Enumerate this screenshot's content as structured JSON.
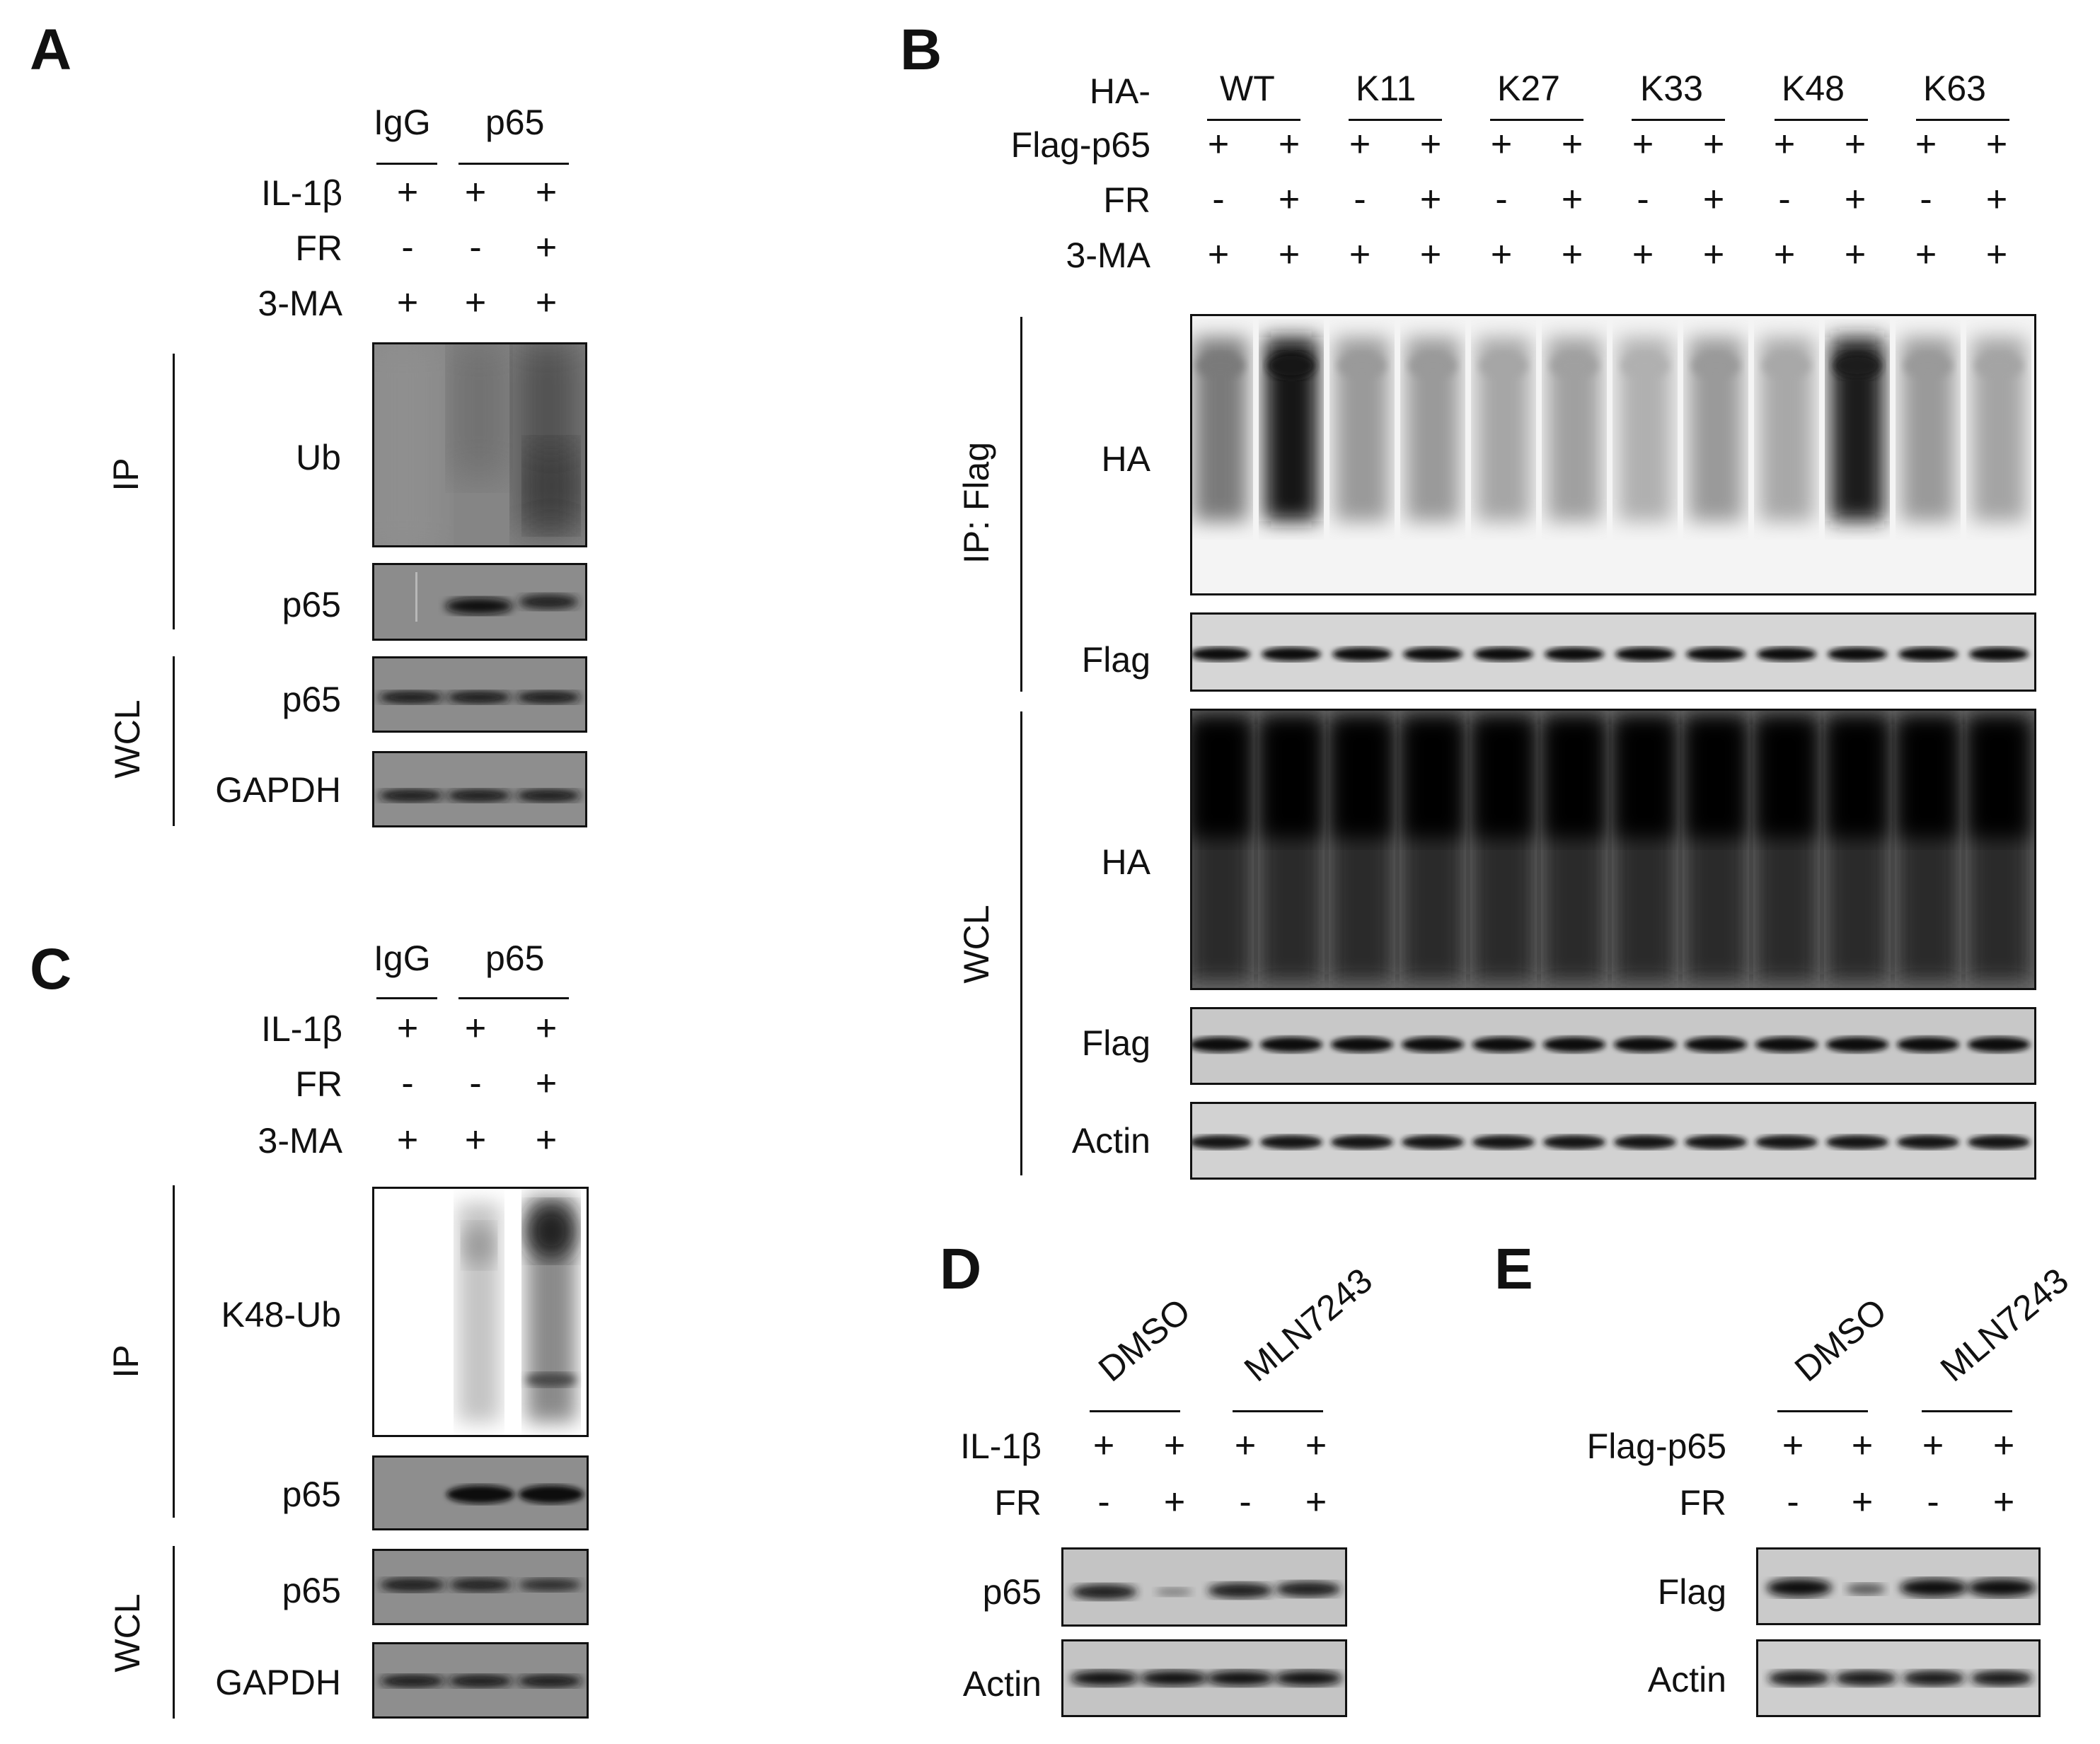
{
  "panels": {
    "A": {
      "letter": "A",
      "groups": [
        "IgG",
        "p65"
      ],
      "rows": [
        {
          "label": "IL-1β",
          "signs": [
            "+",
            "+",
            "+"
          ]
        },
        {
          "label": "FR",
          "signs": [
            "-",
            "-",
            "+"
          ]
        },
        {
          "label": "3-MA",
          "signs": [
            "+",
            "+",
            "+"
          ]
        }
      ],
      "section_ip": "IP",
      "section_wcl": "WCL",
      "blots": [
        "Ub",
        "p65",
        "p65",
        "GAPDH"
      ]
    },
    "B": {
      "letter": "B",
      "ha_prefix": "HA-",
      "groups": [
        "WT",
        "K11",
        "K27",
        "K33",
        "K48",
        "K63"
      ],
      "rows": [
        {
          "label": "Flag-p65",
          "signs": [
            "+",
            "+",
            "+",
            "+",
            "+",
            "+",
            "+",
            "+",
            "+",
            "+",
            "+",
            "+"
          ]
        },
        {
          "label": "FR",
          "signs": [
            "-",
            "+",
            "-",
            "+",
            "-",
            "+",
            "-",
            "+",
            "-",
            "+",
            "-",
            "+"
          ]
        },
        {
          "label": "3-MA",
          "signs": [
            "+",
            "+",
            "+",
            "+",
            "+",
            "+",
            "+",
            "+",
            "+",
            "+",
            "+",
            "+"
          ]
        }
      ],
      "section_ip": "IP: Flag",
      "section_wcl": "WCL",
      "blots": [
        "HA",
        "Flag",
        "HA",
        "Flag",
        "Actin"
      ]
    },
    "C": {
      "letter": "C",
      "groups": [
        "IgG",
        "p65"
      ],
      "rows": [
        {
          "label": "IL-1β",
          "signs": [
            "+",
            "+",
            "+"
          ]
        },
        {
          "label": "FR",
          "signs": [
            "-",
            "-",
            "+"
          ]
        },
        {
          "label": "3-MA",
          "signs": [
            "+",
            "+",
            "+"
          ]
        }
      ],
      "section_ip": "IP",
      "section_wcl": "WCL",
      "blots": [
        "K48-Ub",
        "p65",
        "p65",
        "GAPDH"
      ]
    },
    "D": {
      "letter": "D",
      "groups": [
        "DMSO",
        "MLN7243"
      ],
      "rows": [
        {
          "label": "IL-1β",
          "signs": [
            "+",
            "+",
            "+",
            "+"
          ]
        },
        {
          "label": "FR",
          "signs": [
            "-",
            "+",
            "-",
            "+"
          ]
        }
      ],
      "blots": [
        "p65",
        "Actin"
      ]
    },
    "E": {
      "letter": "E",
      "groups": [
        "DMSO",
        "MLN7243"
      ],
      "rows": [
        {
          "label": "Flag-p65",
          "signs": [
            "+",
            "+",
            "+",
            "+"
          ]
        },
        {
          "label": "FR",
          "signs": [
            "-",
            "+",
            "-",
            "+"
          ]
        }
      ],
      "blots": [
        "Flag",
        "Actin"
      ]
    }
  }
}
